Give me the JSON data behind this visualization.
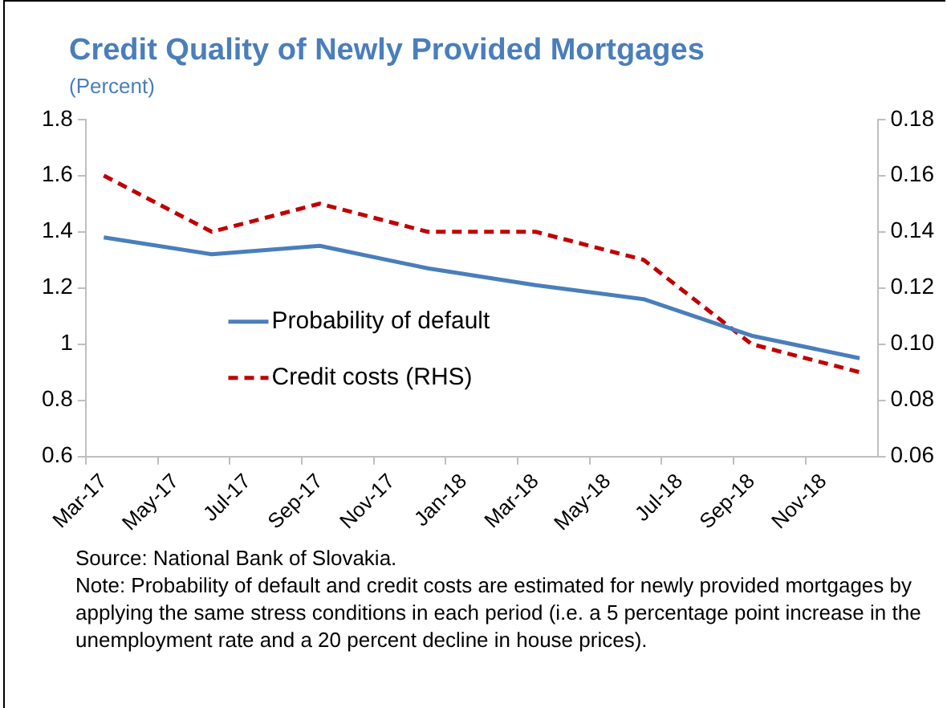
{
  "chart_data": {
    "type": "line",
    "title": "Credit Quality of Newly Provided Mortgages",
    "subtitle": "(Percent)",
    "categories": [
      "Mar-17",
      null,
      "May-17",
      null,
      "Jul-17",
      null,
      "Sep-17",
      null,
      "Nov-17",
      null,
      "Jan-18",
      null,
      "Mar-18",
      null,
      "May-18",
      null,
      "Jul-18",
      null,
      "Sep-18",
      null,
      "Nov-18",
      null
    ],
    "series": [
      {
        "name": "Probability of default",
        "color": "#4a7ebb",
        "line_style": "solid",
        "values": [
          1.38,
          null,
          null,
          1.32,
          null,
          null,
          1.35,
          null,
          null,
          1.27,
          null,
          null,
          1.21,
          null,
          null,
          1.16,
          null,
          null,
          1.03,
          null,
          null,
          0.95
        ]
      },
      {
        "name": "Credit costs (RHS)",
        "color": "#c00000",
        "line_style": "dashed",
        "axis": "y2",
        "values": [
          0.16,
          null,
          null,
          0.14,
          null,
          null,
          0.15,
          null,
          null,
          0.14,
          null,
          null,
          0.14,
          null,
          null,
          0.13,
          null,
          null,
          0.1,
          null,
          null,
          0.09
        ]
      }
    ],
    "ylim": [
      0.6,
      1.8
    ],
    "yticks": [
      0.6,
      0.8,
      1,
      1.2,
      1.4,
      1.6,
      1.8
    ],
    "y2lim": [
      0.06,
      0.18
    ],
    "y2ticks": [
      {
        "value": 0.06,
        "label": "0.06"
      },
      {
        "value": 0.08,
        "label": "0.08"
      },
      {
        "value": 0.1,
        "label": "0.10"
      },
      {
        "value": 0.12,
        "label": "0.12"
      },
      {
        "value": 0.14,
        "label": "0.14"
      },
      {
        "value": 0.16,
        "label": "0.16"
      },
      {
        "value": 0.18,
        "label": "0.18"
      }
    ],
    "grid": false,
    "legend": "center",
    "marker": "none",
    "annotations": [
      "Source: National Bank of Slovakia.",
      "Note: Probability of default and credit costs are estimated for newly provided mortgages by applying the same stress conditions in each period (i.e. a 5 percentage point increase in the unemployment rate and a 20 percent decline in house prices)."
    ]
  }
}
